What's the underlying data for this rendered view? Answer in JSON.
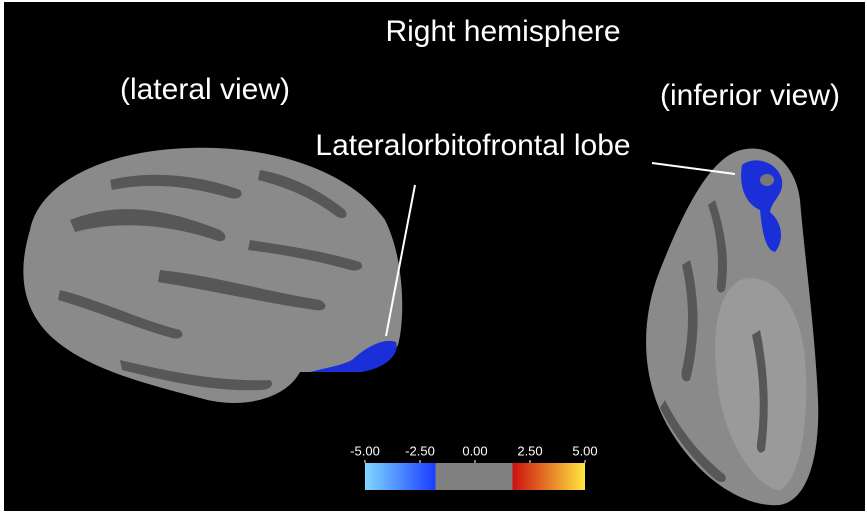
{
  "title": "Right hemisphere",
  "views": {
    "lateral": "(lateral view)",
    "inferior": "(inferior view)"
  },
  "annotation": "Lateralorbitofrontal lobe",
  "colorbar": {
    "range": [
      -5,
      5
    ],
    "ticks": [
      {
        "value": -5,
        "label": "-5.00"
      },
      {
        "value": -2.5,
        "label": "-2.50"
      },
      {
        "value": 0,
        "label": "0.00"
      },
      {
        "value": 2.5,
        "label": "2.50"
      },
      {
        "value": 5,
        "label": "5.00"
      }
    ]
  }
}
